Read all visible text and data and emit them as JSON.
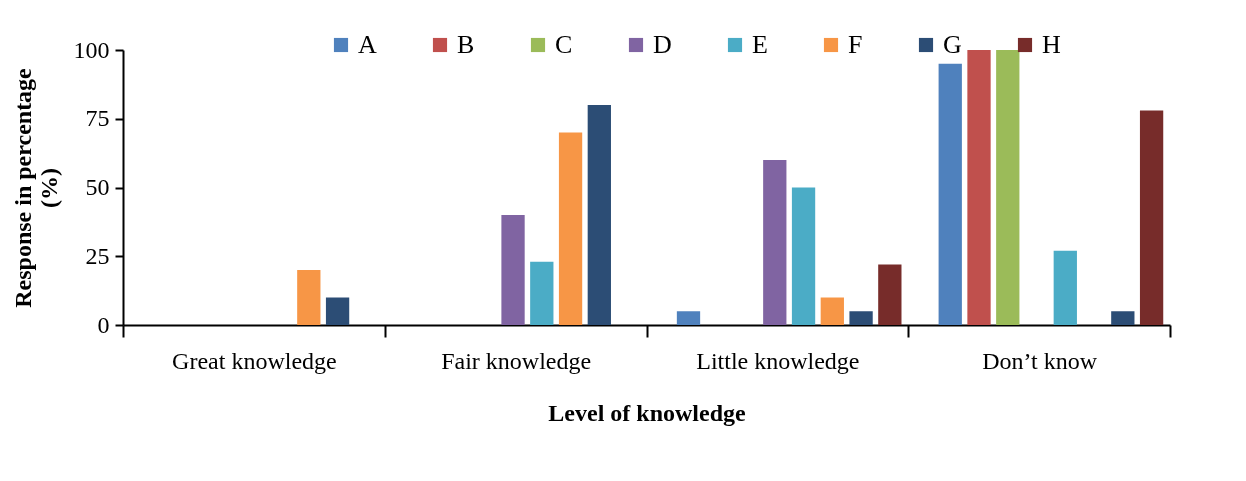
{
  "chart_data": {
    "type": "bar",
    "xlabel": "Level of knowledge",
    "ylabel": "Response in percentage (%)",
    "categories": [
      "Great knowledge",
      "Fair knowledge",
      "Little knowledge",
      "Don’t know"
    ],
    "series": [
      {
        "name": "A",
        "color": "#4f81bd",
        "values": [
          null,
          null,
          5,
          95
        ]
      },
      {
        "name": "B",
        "color": "#c0504d",
        "values": [
          null,
          null,
          null,
          100
        ]
      },
      {
        "name": "C",
        "color": "#9bbb59",
        "values": [
          null,
          null,
          null,
          100
        ]
      },
      {
        "name": "D",
        "color": "#8064a2",
        "values": [
          null,
          40,
          60,
          null
        ]
      },
      {
        "name": "E",
        "color": "#4bacc6",
        "values": [
          null,
          23,
          50,
          27
        ]
      },
      {
        "name": "F",
        "color": "#f79646",
        "values": [
          20,
          70,
          10,
          null
        ]
      },
      {
        "name": "G",
        "color": "#2c4d75",
        "values": [
          10,
          80,
          5,
          5
        ]
      },
      {
        "name": "H",
        "color": "#772c2a",
        "values": [
          null,
          null,
          22,
          78
        ]
      }
    ],
    "ylim": [
      0,
      100
    ],
    "yticks": [
      0,
      25,
      50,
      75,
      100
    ],
    "grid": false,
    "legend": "top"
  }
}
